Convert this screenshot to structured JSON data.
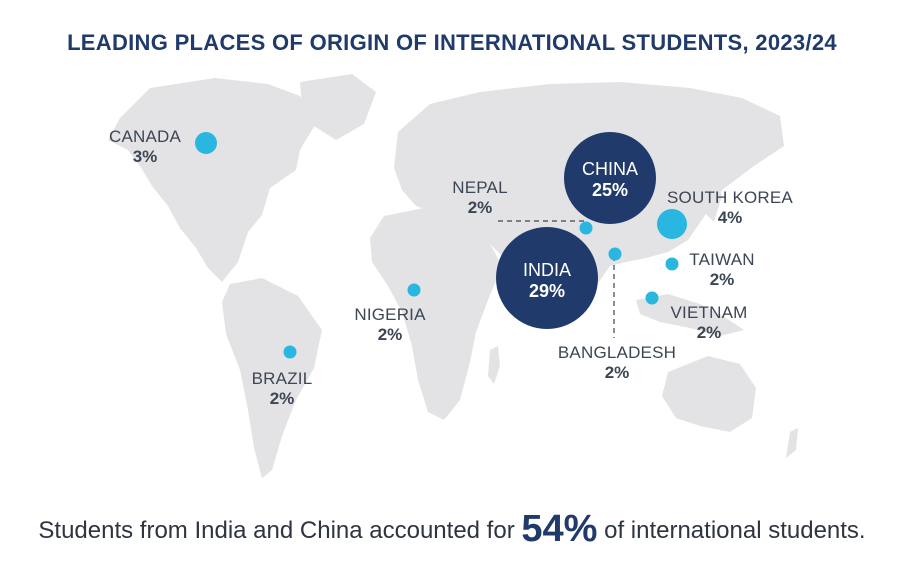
{
  "title": "LEADING PLACES OF ORIGIN OF INTERNATIONAL STUDENTS, 2023/24",
  "colors": {
    "title": "#1f3a6b",
    "large_bubble": "#1f3a6b",
    "small_bubble": "#29b6e0",
    "land": "#e3e3e5"
  },
  "countries": [
    {
      "name": "CANADA",
      "share": "3%"
    },
    {
      "name": "CHINA",
      "share": "25%"
    },
    {
      "name": "NEPAL",
      "share": "2%"
    },
    {
      "name": "SOUTH KOREA",
      "share": "4%"
    },
    {
      "name": "INDIA",
      "share": "29%"
    },
    {
      "name": "TAIWAN",
      "share": "2%"
    },
    {
      "name": "NIGERIA",
      "share": "2%"
    },
    {
      "name": "VIETNAM",
      "share": "2%"
    },
    {
      "name": "BANGLADESH",
      "share": "2%"
    },
    {
      "name": "BRAZIL",
      "share": "2%"
    }
  ],
  "footer": {
    "before": "Students from India and China accounted for ",
    "highlight": "54%",
    "after": " of international students."
  }
}
